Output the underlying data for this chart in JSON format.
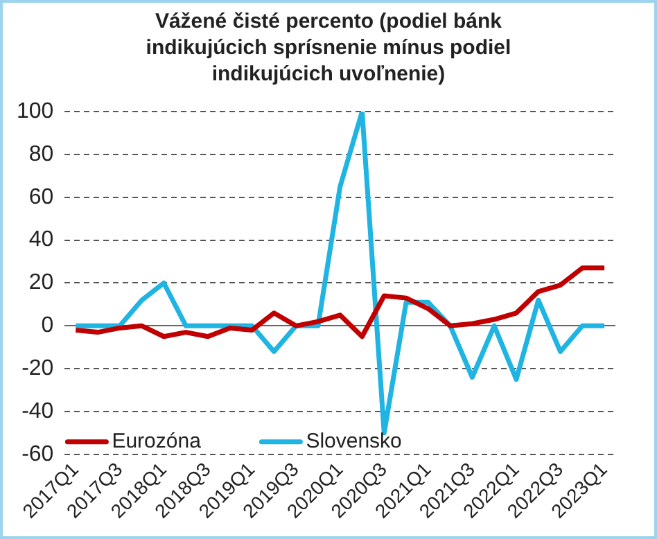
{
  "chart_data": {
    "type": "line",
    "title": "Vážené čisté percento (podiel bánk indikujúcich sprísnenie mínus podiel indikujúcich uvoľnenie)",
    "categories": [
      "2017Q1",
      null,
      "2017Q3",
      null,
      "2018Q1",
      null,
      "2018Q3",
      null,
      "2019Q1",
      null,
      "2019Q3",
      null,
      "2020Q1",
      null,
      "2020Q3",
      null,
      "2021Q1",
      null,
      "2021Q3",
      null,
      "2022Q1",
      null,
      "2022Q3",
      null,
      "2023Q1"
    ],
    "series": [
      {
        "name": "Eurozóna",
        "color": "#c00000",
        "values": [
          -2,
          -3,
          -1,
          0,
          -5,
          -3,
          -5,
          -1,
          -2,
          6,
          0,
          2,
          5,
          -5,
          14,
          13,
          8,
          0,
          1,
          3,
          6,
          16,
          19,
          27,
          27
        ]
      },
      {
        "name": "Slovensko",
        "color": "#1fb4e2",
        "values": [
          0,
          0,
          0,
          12,
          20,
          0,
          0,
          0,
          0,
          -12,
          0,
          0,
          65,
          100,
          -50,
          11,
          11,
          0,
          -24,
          0,
          -25,
          12,
          -12,
          0,
          0
        ]
      }
    ],
    "ylim": [
      -60,
      100
    ],
    "yticks": [
      -60,
      -40,
      -20,
      0,
      20,
      40,
      60,
      80,
      100
    ],
    "grid": "y",
    "legend": "bottom left",
    "marker": "none",
    "line_style": "solid"
  }
}
